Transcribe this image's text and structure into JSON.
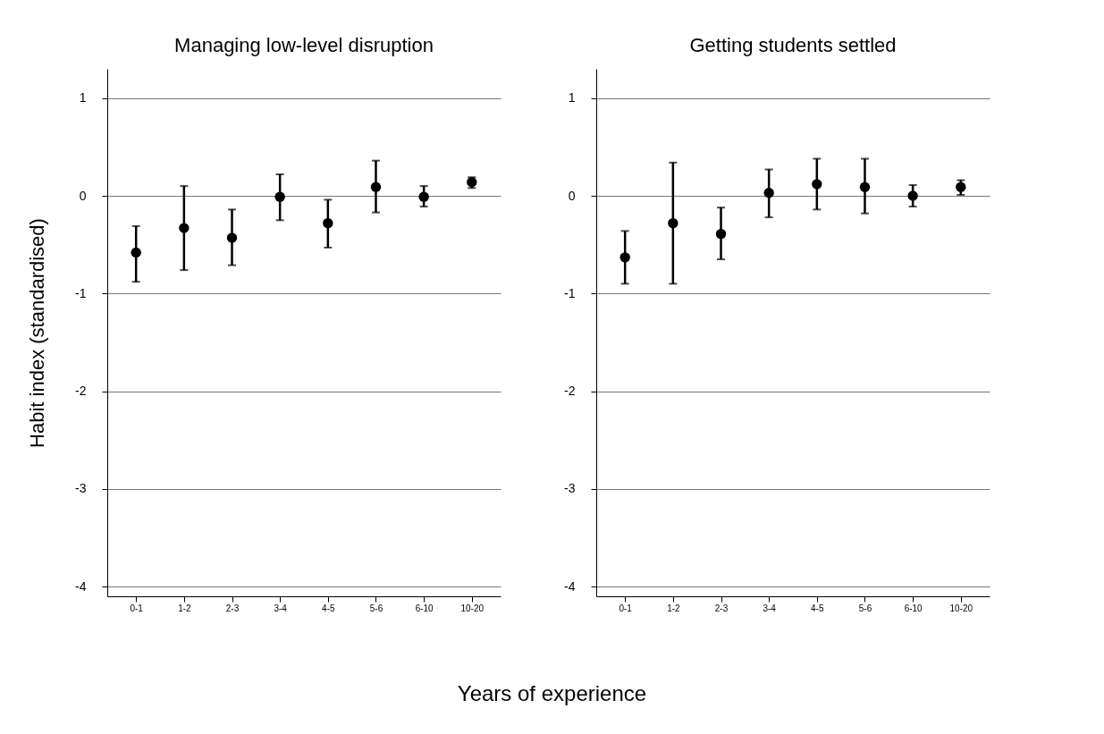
{
  "chart_data": [
    {
      "type": "scatter",
      "title": "Managing low-level disruption",
      "ylabel": "Habit index (standardised)",
      "xlabel": "Years of experience",
      "categories": [
        "0-1",
        "1-2",
        "2-3",
        "3-4",
        "4-5",
        "5-6",
        "6-10",
        "10-20"
      ],
      "ylim": [
        -4.1,
        1.3
      ],
      "yticks": [
        1,
        0,
        -1,
        -2,
        -3,
        -4
      ],
      "grid": "y",
      "marker": "circle",
      "series": [
        {
          "color": "#000000",
          "values": [
            -0.58,
            -0.33,
            -0.43,
            -0.01,
            -0.28,
            0.09,
            -0.01,
            0.14
          ],
          "errors": [
            [
              -0.88,
              -0.31
            ],
            [
              -0.76,
              0.1
            ],
            [
              -0.71,
              -0.14
            ],
            [
              -0.25,
              0.22
            ],
            [
              -0.53,
              -0.04
            ],
            [
              -0.17,
              0.36
            ],
            [
              -0.11,
              0.1
            ],
            [
              0.08,
              0.19
            ]
          ]
        }
      ]
    },
    {
      "type": "scatter",
      "title": "Getting students settled",
      "categories": [
        "0-1",
        "1-2",
        "2-3",
        "3-4",
        "4-5",
        "5-6",
        "6-10",
        "10-20"
      ],
      "ylim": [
        -4.1,
        1.3
      ],
      "yticks": [
        1,
        0,
        -1,
        -2,
        -3,
        -4
      ],
      "grid": "y",
      "marker": "circle",
      "series": [
        {
          "color": "#000000",
          "values": [
            -0.63,
            -0.28,
            -0.39,
            0.03,
            0.12,
            0.09,
            0.0,
            0.09
          ],
          "errors": [
            [
              -0.9,
              -0.36
            ],
            [
              -0.9,
              0.34
            ],
            [
              -0.65,
              -0.12
            ],
            [
              -0.22,
              0.27
            ],
            [
              -0.14,
              0.38
            ],
            [
              -0.18,
              0.38
            ],
            [
              -0.11,
              0.11
            ],
            [
              0.01,
              0.16
            ]
          ]
        }
      ]
    }
  ]
}
